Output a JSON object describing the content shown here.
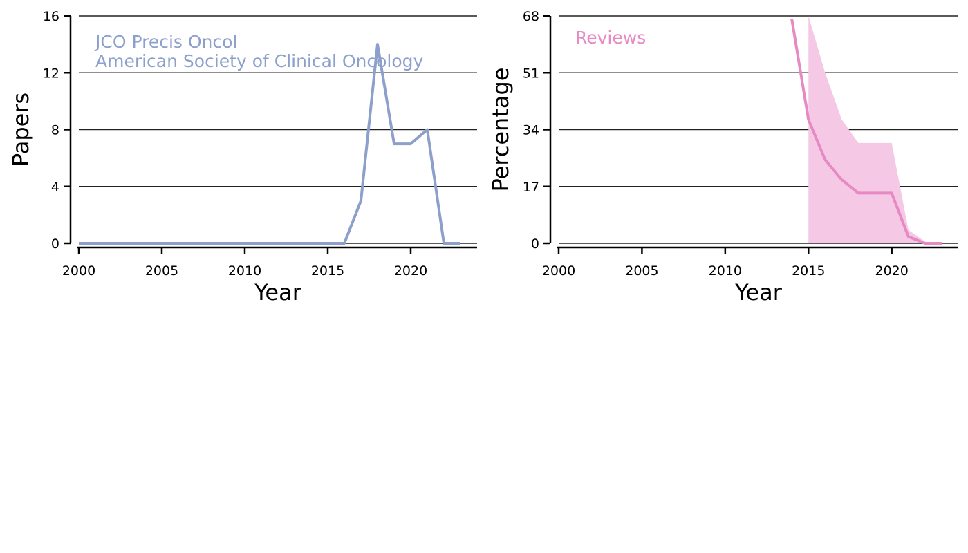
{
  "chart_data": [
    {
      "type": "line",
      "xlabel": "Year",
      "ylabel": "Papers",
      "xlim": [
        2000,
        2024
      ],
      "ylim": [
        0,
        16
      ],
      "xticks": [
        2000,
        2005,
        2010,
        2015,
        2020
      ],
      "yticks": [
        0,
        4,
        8,
        12,
        16
      ],
      "grid": "horizontal",
      "annotations": [
        "JCO Precis Oncol",
        "American Society of Clinical Oncology"
      ],
      "color": "#8da0cb",
      "series": [
        {
          "x": [
            2000,
            2001,
            2002,
            2003,
            2004,
            2005,
            2006,
            2007,
            2008,
            2009,
            2010,
            2011,
            2012,
            2013,
            2014,
            2015,
            2016,
            2017,
            2018,
            2019,
            2020,
            2021,
            2022,
            2023
          ],
          "y": [
            0,
            0,
            0,
            0,
            0,
            0,
            0,
            0,
            0,
            0,
            0,
            0,
            0,
            0,
            0,
            0,
            0,
            3,
            14,
            7,
            7,
            8,
            0,
            0
          ]
        }
      ]
    },
    {
      "type": "line",
      "xlabel": "Year",
      "ylabel": "Percentage",
      "xlim": [
        2000,
        2024
      ],
      "ylim": [
        0,
        68
      ],
      "xticks": [
        2000,
        2005,
        2010,
        2015,
        2020
      ],
      "yticks": [
        0,
        17,
        34,
        51,
        68
      ],
      "grid": "horizontal",
      "annotations": [
        "Reviews"
      ],
      "color": "#e78ac3",
      "band_color": "#f5c9e5",
      "series": [
        {
          "x": [
            2014,
            2015,
            2016,
            2017,
            2018,
            2019,
            2020,
            2021,
            2022,
            2023
          ],
          "y": [
            67,
            37,
            25,
            19,
            15,
            15,
            15,
            2,
            0,
            0
          ]
        }
      ],
      "band": {
        "x": [
          2015,
          2016,
          2017,
          2018,
          2019,
          2020,
          2021,
          2022,
          2023
        ],
        "lower": [
          0,
          0,
          0,
          0,
          0,
          0,
          0,
          0,
          0
        ],
        "upper": [
          68,
          51,
          37,
          30,
          30,
          30,
          4,
          0.5,
          0
        ]
      }
    }
  ]
}
